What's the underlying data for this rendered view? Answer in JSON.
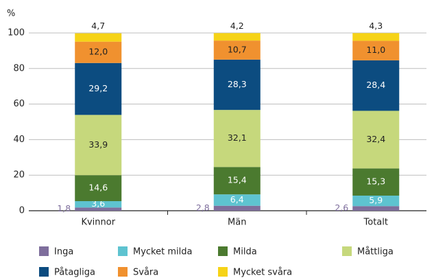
{
  "chart_data": {
    "type": "stacked_bar",
    "y_label": "%",
    "categories": [
      "Kvinnor",
      "Män",
      "Totalt"
    ],
    "ylim": [
      0,
      100
    ],
    "yticks": [
      0,
      20,
      40,
      60,
      80,
      100
    ],
    "grid": true,
    "series": [
      {
        "name": "Inga",
        "color": "#7e6e9c",
        "values": [
          1.8,
          2.8,
          2.6
        ],
        "value_labels": [
          "1,8",
          "2,8",
          "2,6"
        ]
      },
      {
        "name": "Mycket milda",
        "color": "#5ec3d0",
        "values": [
          3.6,
          6.4,
          5.9
        ],
        "value_labels": [
          "3,6",
          "6,4",
          "5,9"
        ]
      },
      {
        "name": "Milda",
        "color": "#4b7a2f",
        "values": [
          14.6,
          15.4,
          15.3
        ],
        "value_labels": [
          "14,6",
          "15,4",
          "15,3"
        ]
      },
      {
        "name": "Måttliga",
        "color": "#c6d87c",
        "values": [
          33.9,
          32.1,
          32.4
        ],
        "value_labels": [
          "33,9",
          "32,1",
          "32,4"
        ]
      },
      {
        "name": "Påtagliga",
        "color": "#0c4c80",
        "values": [
          29.2,
          28.3,
          28.4
        ],
        "value_labels": [
          "29,2",
          "28,3",
          "28,4"
        ]
      },
      {
        "name": "Svåra",
        "color": "#f0912f",
        "values": [
          12.0,
          10.7,
          11.0
        ],
        "value_labels": [
          "12,0",
          "10,7",
          "11,0"
        ]
      },
      {
        "name": "Mycket svåra",
        "color": "#f6d317",
        "values": [
          4.7,
          4.2,
          4.3
        ],
        "value_labels": [
          "4,7",
          "4,2",
          "4,3"
        ]
      }
    ]
  }
}
